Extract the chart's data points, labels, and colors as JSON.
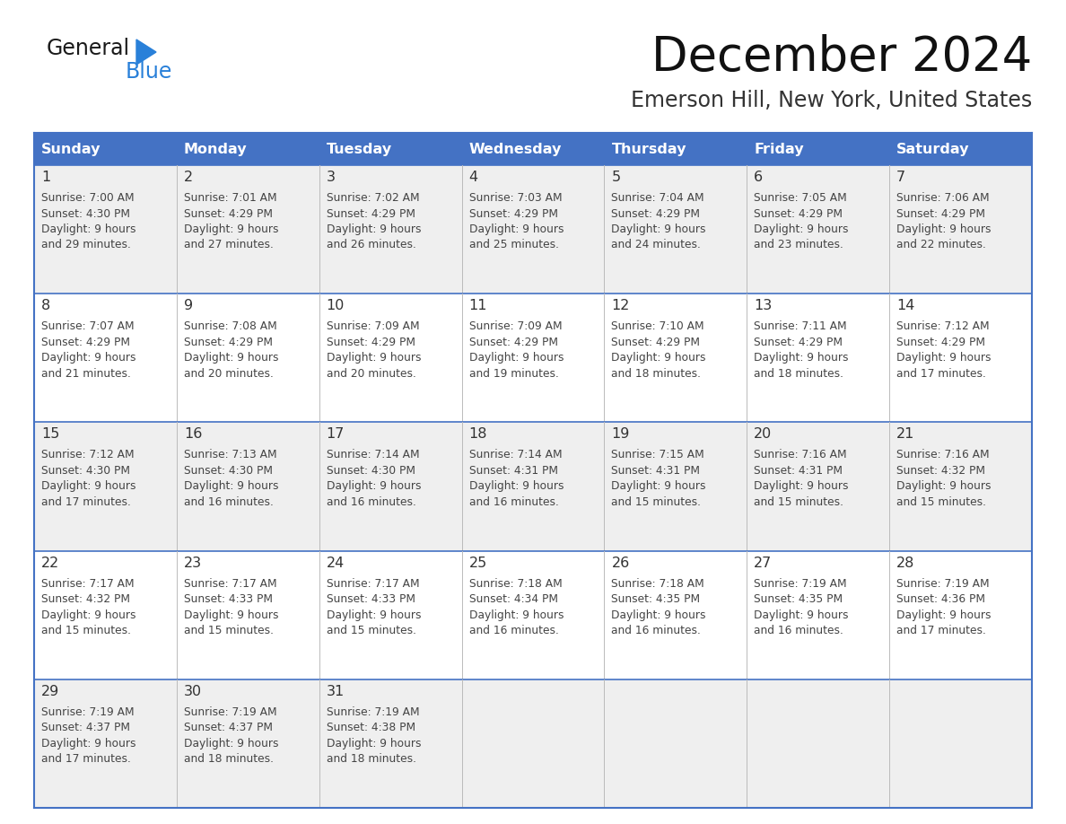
{
  "title": "December 2024",
  "subtitle": "Emerson Hill, New York, United States",
  "days_of_week": [
    "Sunday",
    "Monday",
    "Tuesday",
    "Wednesday",
    "Thursday",
    "Friday",
    "Saturday"
  ],
  "header_bg": "#4472C4",
  "header_text": "#FFFFFF",
  "day_num_color": "#333333",
  "cell_text_color": "#444444",
  "cell_bg_odd": "#EFEFEF",
  "cell_bg_even": "#FFFFFF",
  "border_color": "#4472C4",
  "grid_color": "#BBBBBB",
  "weeks": [
    [
      {
        "day": 1,
        "sunrise": "7:00 AM",
        "sunset": "4:30 PM",
        "daylight": "9 hours and 29 minutes."
      },
      {
        "day": 2,
        "sunrise": "7:01 AM",
        "sunset": "4:29 PM",
        "daylight": "9 hours and 27 minutes."
      },
      {
        "day": 3,
        "sunrise": "7:02 AM",
        "sunset": "4:29 PM",
        "daylight": "9 hours and 26 minutes."
      },
      {
        "day": 4,
        "sunrise": "7:03 AM",
        "sunset": "4:29 PM",
        "daylight": "9 hours and 25 minutes."
      },
      {
        "day": 5,
        "sunrise": "7:04 AM",
        "sunset": "4:29 PM",
        "daylight": "9 hours and 24 minutes."
      },
      {
        "day": 6,
        "sunrise": "7:05 AM",
        "sunset": "4:29 PM",
        "daylight": "9 hours and 23 minutes."
      },
      {
        "day": 7,
        "sunrise": "7:06 AM",
        "sunset": "4:29 PM",
        "daylight": "9 hours and 22 minutes."
      }
    ],
    [
      {
        "day": 8,
        "sunrise": "7:07 AM",
        "sunset": "4:29 PM",
        "daylight": "9 hours and 21 minutes."
      },
      {
        "day": 9,
        "sunrise": "7:08 AM",
        "sunset": "4:29 PM",
        "daylight": "9 hours and 20 minutes."
      },
      {
        "day": 10,
        "sunrise": "7:09 AM",
        "sunset": "4:29 PM",
        "daylight": "9 hours and 20 minutes."
      },
      {
        "day": 11,
        "sunrise": "7:09 AM",
        "sunset": "4:29 PM",
        "daylight": "9 hours and 19 minutes."
      },
      {
        "day": 12,
        "sunrise": "7:10 AM",
        "sunset": "4:29 PM",
        "daylight": "9 hours and 18 minutes."
      },
      {
        "day": 13,
        "sunrise": "7:11 AM",
        "sunset": "4:29 PM",
        "daylight": "9 hours and 18 minutes."
      },
      {
        "day": 14,
        "sunrise": "7:12 AM",
        "sunset": "4:29 PM",
        "daylight": "9 hours and 17 minutes."
      }
    ],
    [
      {
        "day": 15,
        "sunrise": "7:12 AM",
        "sunset": "4:30 PM",
        "daylight": "9 hours and 17 minutes."
      },
      {
        "day": 16,
        "sunrise": "7:13 AM",
        "sunset": "4:30 PM",
        "daylight": "9 hours and 16 minutes."
      },
      {
        "day": 17,
        "sunrise": "7:14 AM",
        "sunset": "4:30 PM",
        "daylight": "9 hours and 16 minutes."
      },
      {
        "day": 18,
        "sunrise": "7:14 AM",
        "sunset": "4:31 PM",
        "daylight": "9 hours and 16 minutes."
      },
      {
        "day": 19,
        "sunrise": "7:15 AM",
        "sunset": "4:31 PM",
        "daylight": "9 hours and 15 minutes."
      },
      {
        "day": 20,
        "sunrise": "7:16 AM",
        "sunset": "4:31 PM",
        "daylight": "9 hours and 15 minutes."
      },
      {
        "day": 21,
        "sunrise": "7:16 AM",
        "sunset": "4:32 PM",
        "daylight": "9 hours and 15 minutes."
      }
    ],
    [
      {
        "day": 22,
        "sunrise": "7:17 AM",
        "sunset": "4:32 PM",
        "daylight": "9 hours and 15 minutes."
      },
      {
        "day": 23,
        "sunrise": "7:17 AM",
        "sunset": "4:33 PM",
        "daylight": "9 hours and 15 minutes."
      },
      {
        "day": 24,
        "sunrise": "7:17 AM",
        "sunset": "4:33 PM",
        "daylight": "9 hours and 15 minutes."
      },
      {
        "day": 25,
        "sunrise": "7:18 AM",
        "sunset": "4:34 PM",
        "daylight": "9 hours and 16 minutes."
      },
      {
        "day": 26,
        "sunrise": "7:18 AM",
        "sunset": "4:35 PM",
        "daylight": "9 hours and 16 minutes."
      },
      {
        "day": 27,
        "sunrise": "7:19 AM",
        "sunset": "4:35 PM",
        "daylight": "9 hours and 16 minutes."
      },
      {
        "day": 28,
        "sunrise": "7:19 AM",
        "sunset": "4:36 PM",
        "daylight": "9 hours and 17 minutes."
      }
    ],
    [
      {
        "day": 29,
        "sunrise": "7:19 AM",
        "sunset": "4:37 PM",
        "daylight": "9 hours and 17 minutes."
      },
      {
        "day": 30,
        "sunrise": "7:19 AM",
        "sunset": "4:37 PM",
        "daylight": "9 hours and 18 minutes."
      },
      {
        "day": 31,
        "sunrise": "7:19 AM",
        "sunset": "4:38 PM",
        "daylight": "9 hours and 18 minutes."
      },
      null,
      null,
      null,
      null
    ]
  ]
}
